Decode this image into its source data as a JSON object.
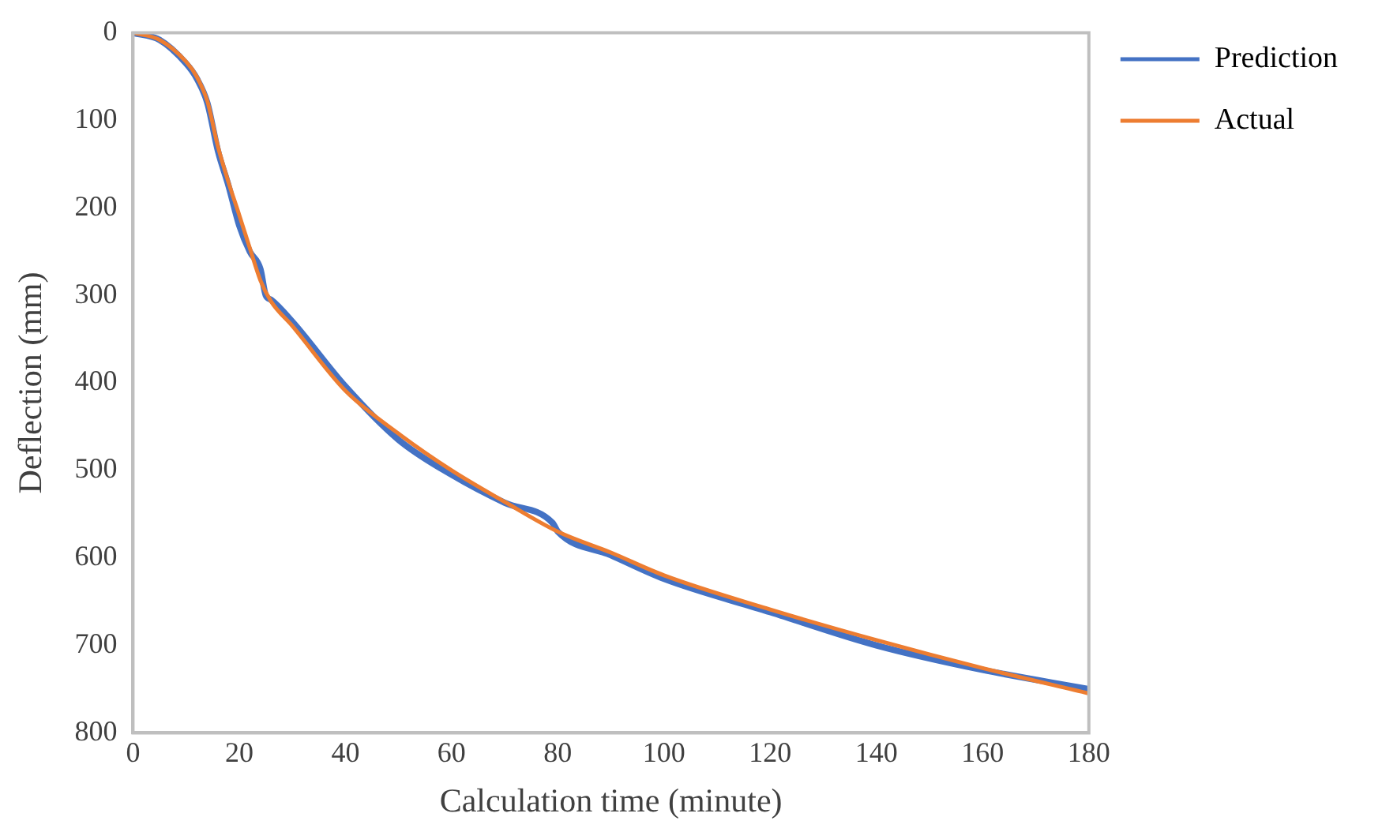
{
  "chart_data": {
    "type": "line",
    "xlabel": "Calculation time (minute)",
    "ylabel": "Deflection (mm)",
    "xlim": [
      0,
      180
    ],
    "xticks": [
      0,
      20,
      40,
      60,
      80,
      100,
      120,
      140,
      160,
      180
    ],
    "ylim": [
      800,
      0
    ],
    "yticks": [
      0,
      100,
      200,
      300,
      400,
      500,
      600,
      700,
      800
    ],
    "grid": false,
    "legend": "right",
    "marker": "none",
    "line_style": "solid",
    "series": [
      {
        "name": "Prediction",
        "color": "#4472c4",
        "x": [
          0,
          5,
          10,
          12,
          14,
          16,
          18,
          20,
          22,
          24,
          25,
          26,
          30,
          40,
          50,
          60,
          70,
          79,
          80,
          90,
          100,
          120,
          140,
          160,
          180
        ],
        "values": [
          0,
          8,
          35,
          52,
          80,
          135,
          175,
          220,
          250,
          270,
          300,
          305,
          330,
          404,
          465,
          505,
          537,
          560,
          570,
          597,
          624,
          662,
          700,
          728,
          750
        ]
      },
      {
        "name": "Actual",
        "color": "#ed7d31",
        "x": [
          0,
          5,
          10,
          12,
          14,
          16,
          18,
          20,
          22,
          24,
          26,
          30,
          40,
          50,
          60,
          70,
          80,
          90,
          100,
          120,
          140,
          160,
          180
        ],
        "values": [
          0,
          8,
          33,
          50,
          78,
          130,
          171,
          208,
          246,
          283,
          307,
          335,
          409,
          458,
          500,
          536,
          570,
          594,
          620,
          659,
          694,
          726,
          755
        ]
      }
    ]
  }
}
